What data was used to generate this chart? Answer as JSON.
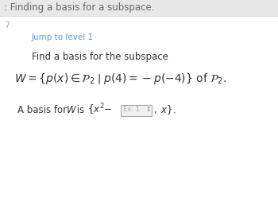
{
  "bg_header": "#e8e8e8",
  "bg_main": "#ffffff",
  "header_text": ": Finding a basis for a subspace.",
  "header_color": "#666666",
  "header_fontsize": 8.5,
  "side_number": "7",
  "side_number_color": "#aaaaaa",
  "side_number_fontsize": 8,
  "jump_text": "Jump to level 1",
  "jump_color": "#5b9bd5",
  "jump_fontsize": 7.5,
  "find_text": "Find a basis for the subspace",
  "find_color": "#333333",
  "find_fontsize": 8.5,
  "main_eq_fontsize": 10,
  "main_eq_color": "#333333",
  "basis_fontsize": 8.5,
  "basis_color": "#333333",
  "box_text": "Ex: 1",
  "box_arrow": "↕",
  "box_facecolor": "#f0f0f0",
  "box_edgecolor": "#aaaaaa",
  "divider_color": "#cccccc"
}
